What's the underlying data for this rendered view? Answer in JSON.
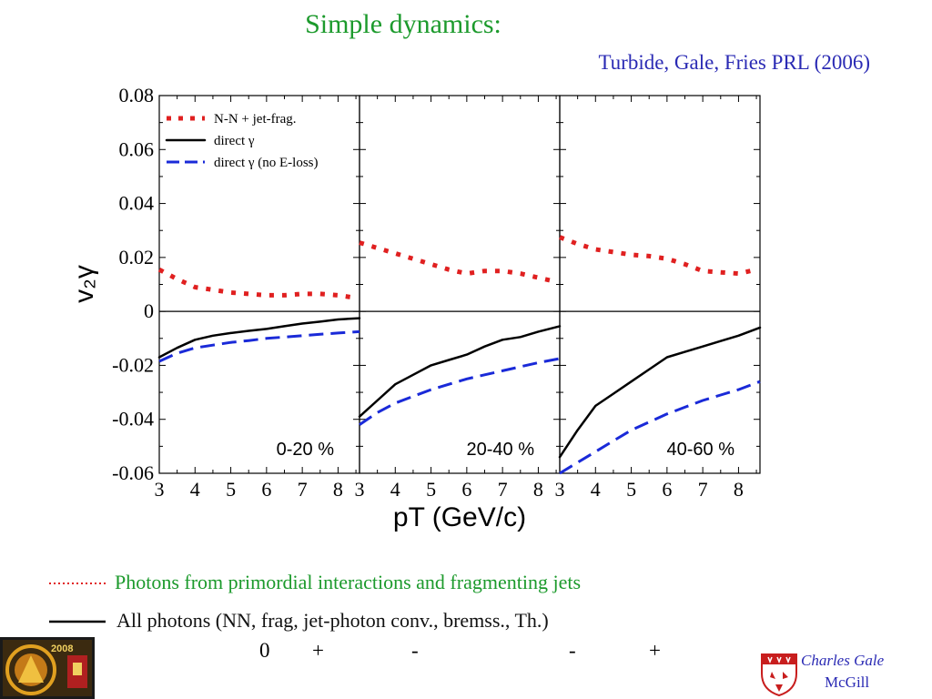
{
  "slide": {
    "title": "Simple dynamics:",
    "citation": "Turbide, Gale, Fries PRL (2006)",
    "bottom_legend": [
      {
        "text": "Photons from primordial interactions and fragmenting jets",
        "style": "dotted",
        "color": "#e02020"
      },
      {
        "text": "All photons (NN, frag, jet-photon conv., bremss., Th.)",
        "style": "solid",
        "color": "#000000"
      }
    ],
    "signs": [
      "0",
      "+",
      "-",
      "-",
      "+"
    ],
    "author": "Charles Gale",
    "affiliation": "McGill",
    "logo_left_text": "2008"
  },
  "chart_data": {
    "type": "line",
    "ylabel": "v₂γ",
    "xlabel": "pT (GeV/c)",
    "ylim": [
      -0.06,
      0.08
    ],
    "yticks": [
      "0.08",
      "0.06",
      "0.04",
      "0.02",
      "0",
      "-0.02",
      "-0.04",
      "-0.06"
    ],
    "xlim": [
      3,
      8.6
    ],
    "xticks": [
      "3",
      "4",
      "5",
      "6",
      "7",
      "8"
    ],
    "legend": {
      "placement": "top-left of first panel",
      "entries": [
        {
          "label": "N-N + jet-frag.",
          "style": "dotted",
          "color": "#e02020"
        },
        {
          "label": "direct γ",
          "style": "solid",
          "color": "#000000"
        },
        {
          "label": "direct γ (no E-loss)",
          "style": "dashed",
          "color": "#1a2ad8"
        }
      ]
    },
    "panels": [
      {
        "label": "0-20 %",
        "series": [
          {
            "name": "N-N + jet-frag.",
            "style": "dotted",
            "color": "#e02020",
            "x": [
              3,
              3.5,
              4,
              4.5,
              5,
              5.5,
              6,
              6.5,
              7,
              7.5,
              8,
              8.5
            ],
            "y": [
              0.0155,
              0.012,
              0.009,
              0.008,
              0.007,
              0.0065,
              0.006,
              0.006,
              0.0065,
              0.0065,
              0.006,
              0.005
            ]
          },
          {
            "name": "direct γ",
            "style": "solid",
            "color": "#000000",
            "x": [
              3,
              3.5,
              4,
              4.5,
              5,
              5.5,
              6,
              6.5,
              7,
              7.5,
              8,
              8.6
            ],
            "y": [
              -0.017,
              -0.0135,
              -0.0105,
              -0.009,
              -0.008,
              -0.0072,
              -0.0065,
              -0.0055,
              -0.0045,
              -0.0038,
              -0.003,
              -0.0025
            ]
          },
          {
            "name": "direct γ (no E-loss)",
            "style": "dashed",
            "color": "#1a2ad8",
            "x": [
              3,
              3.5,
              4,
              4.5,
              5,
              5.5,
              6,
              6.5,
              7,
              7.5,
              8,
              8.6
            ],
            "y": [
              -0.0185,
              -0.0155,
              -0.0135,
              -0.0125,
              -0.0115,
              -0.0108,
              -0.01,
              -0.0095,
              -0.009,
              -0.0085,
              -0.008,
              -0.0075
            ]
          }
        ]
      },
      {
        "label": "20-40 %",
        "series": [
          {
            "name": "N-N + jet-frag.",
            "style": "dotted",
            "color": "#e02020",
            "x": [
              3,
              3.5,
              4,
              4.5,
              5,
              5.5,
              6,
              6.5,
              7,
              7.5,
              8,
              8.5
            ],
            "y": [
              0.0255,
              0.0235,
              0.0215,
              0.0195,
              0.0175,
              0.0155,
              0.014,
              0.015,
              0.015,
              0.014,
              0.0125,
              0.011
            ]
          },
          {
            "name": "direct γ",
            "style": "solid",
            "color": "#000000",
            "x": [
              3,
              3.5,
              4,
              4.5,
              5,
              5.5,
              6,
              6.5,
              7,
              7.5,
              8,
              8.6
            ],
            "y": [
              -0.039,
              -0.033,
              -0.027,
              -0.0235,
              -0.02,
              -0.018,
              -0.016,
              -0.013,
              -0.0105,
              -0.0095,
              -0.0075,
              -0.0055
            ]
          },
          {
            "name": "direct γ (no E-loss)",
            "style": "dashed",
            "color": "#1a2ad8",
            "x": [
              3,
              3.5,
              4,
              4.5,
              5,
              5.5,
              6,
              6.5,
              7,
              7.5,
              8,
              8.6
            ],
            "y": [
              -0.042,
              -0.0375,
              -0.034,
              -0.0315,
              -0.029,
              -0.027,
              -0.025,
              -0.0235,
              -0.022,
              -0.0205,
              -0.019,
              -0.0175
            ]
          }
        ]
      },
      {
        "label": "40-60 %",
        "series": [
          {
            "name": "N-N + jet-frag.",
            "style": "dotted",
            "color": "#e02020",
            "x": [
              3,
              3.5,
              4,
              4.5,
              5,
              5.5,
              6,
              6.5,
              7,
              7.5,
              8,
              8.5
            ],
            "y": [
              0.0275,
              0.025,
              0.023,
              0.022,
              0.021,
              0.0205,
              0.0195,
              0.0175,
              0.015,
              0.0145,
              0.014,
              0.0155
            ]
          },
          {
            "name": "direct γ",
            "style": "solid",
            "color": "#000000",
            "x": [
              3,
              3.5,
              4,
              4.5,
              5,
              5.5,
              6,
              6.5,
              7,
              7.5,
              8,
              8.6
            ],
            "y": [
              -0.054,
              -0.044,
              -0.035,
              -0.0305,
              -0.026,
              -0.0215,
              -0.017,
              -0.015,
              -0.013,
              -0.011,
              -0.009,
              -0.006
            ]
          },
          {
            "name": "direct γ (no E-loss)",
            "style": "dashed",
            "color": "#1a2ad8",
            "x": [
              3,
              3.5,
              4,
              4.5,
              5,
              5.5,
              6,
              6.5,
              7,
              7.5,
              8,
              8.6
            ],
            "y": [
              -0.0605,
              -0.056,
              -0.052,
              -0.048,
              -0.044,
              -0.041,
              -0.038,
              -0.0355,
              -0.033,
              -0.031,
              -0.029,
              -0.026
            ]
          }
        ]
      }
    ]
  }
}
